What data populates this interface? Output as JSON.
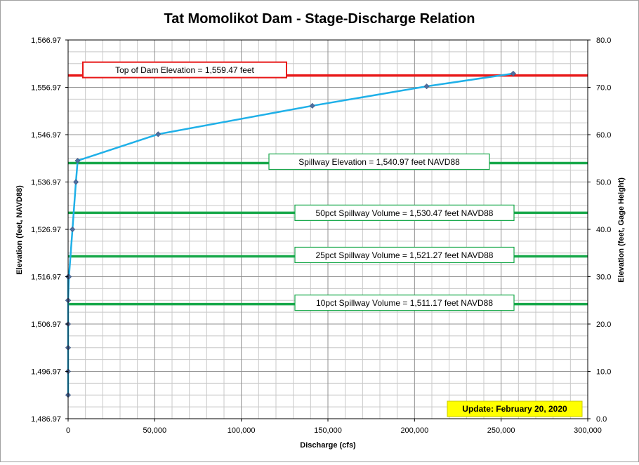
{
  "chart_data": {
    "type": "line",
    "title": "Tat Momolikot Dam - Stage-Discharge Relation",
    "xlabel": "Discharge  (cfs)",
    "ylabel": "Elevation  (feet, NAVD88)",
    "y2label": "Elevation  (feet, Gage Height)",
    "xlim": [
      0,
      300000
    ],
    "ylim": [
      1486.97,
      1566.97
    ],
    "y2lim": [
      0,
      80
    ],
    "x_ticks": [
      "0",
      "50,000",
      "100,000",
      "150,000",
      "200,000",
      "250,000",
      "300,000"
    ],
    "y_ticks": [
      "1,486.97",
      "1,496.97",
      "1,506.97",
      "1,516.97",
      "1,526.97",
      "1,536.97",
      "1,546.97",
      "1,556.97",
      "1,566.97"
    ],
    "y2_ticks": [
      "0.0",
      "10.0",
      "20.0",
      "30.0",
      "40.0",
      "50.0",
      "60.0",
      "70.0",
      "80.0"
    ],
    "grid": true,
    "series": [
      {
        "color": "#1fb0e8",
        "marker_color": "#4f6fa0",
        "x": [
          0,
          0,
          0,
          0,
          0,
          0,
          0,
          500,
          2500,
          4500,
          5500,
          52000,
          141000,
          207000,
          257000
        ],
        "y": [
          1491.97,
          1496.97,
          1501.97,
          1506.97,
          1511.97,
          1516.97,
          1511.97,
          1516.97,
          1526.97,
          1536.97,
          1541.47,
          1547.07,
          1553.07,
          1557.17,
          1559.87
        ]
      }
    ],
    "reference_lines": [
      {
        "y": 1559.47,
        "color": "#e81818",
        "label": "Top of Dam Elevation = 1,559.47  feet"
      },
      {
        "y": 1540.97,
        "color": "#17a84a",
        "label": "Spillway Elevation = 1,540.97  feet NAVD88"
      },
      {
        "y": 1530.47,
        "color": "#17a84a",
        "label": "50pct Spillway Volume = 1,530.47  feet NAVD88"
      },
      {
        "y": 1521.27,
        "color": "#17a84a",
        "label": "25pct Spillway Volume = 1,521.27  feet NAVD88"
      },
      {
        "y": 1511.17,
        "color": "#17a84a",
        "label": "10pct Spillway Volume = 1,511.17  feet NAVD88"
      }
    ],
    "update_note": "Update: February 20, 2020",
    "update_note_color": "#ffff00"
  }
}
